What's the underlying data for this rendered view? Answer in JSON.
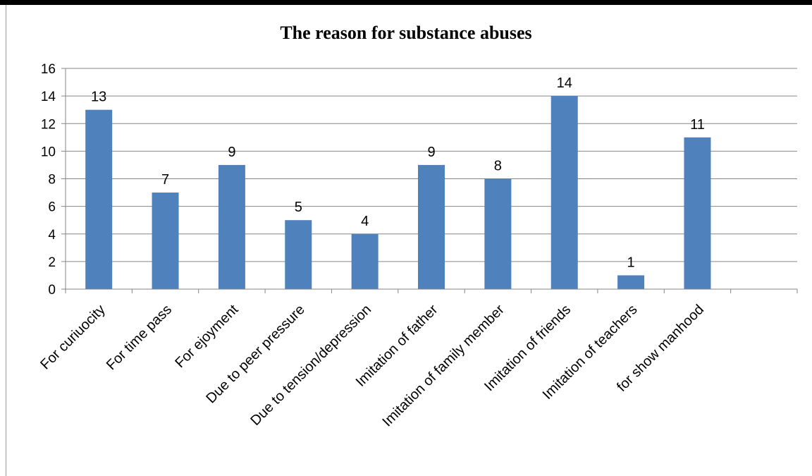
{
  "chart_data": {
    "type": "bar",
    "title": "The reason for substance abuses",
    "xlabel": "",
    "ylabel": "",
    "ylim": [
      0,
      16
    ],
    "yticks": [
      0,
      2,
      4,
      6,
      8,
      10,
      12,
      14,
      16
    ],
    "grid": true,
    "legend": "none",
    "categories": [
      "For curiuocity",
      "For time pass",
      "For ejoyment",
      "Due to peer pressure",
      "Due to tension/depression",
      "Imitation of father",
      "Imitation of family member",
      "Imitation of friends",
      "Imitation of teachers",
      "for show manhood",
      ""
    ],
    "values": [
      13,
      7,
      9,
      5,
      4,
      9,
      8,
      14,
      1,
      11,
      null
    ],
    "colors": {
      "bar": "#4f81bd",
      "grid": "#868686",
      "axis": "#868686"
    }
  }
}
